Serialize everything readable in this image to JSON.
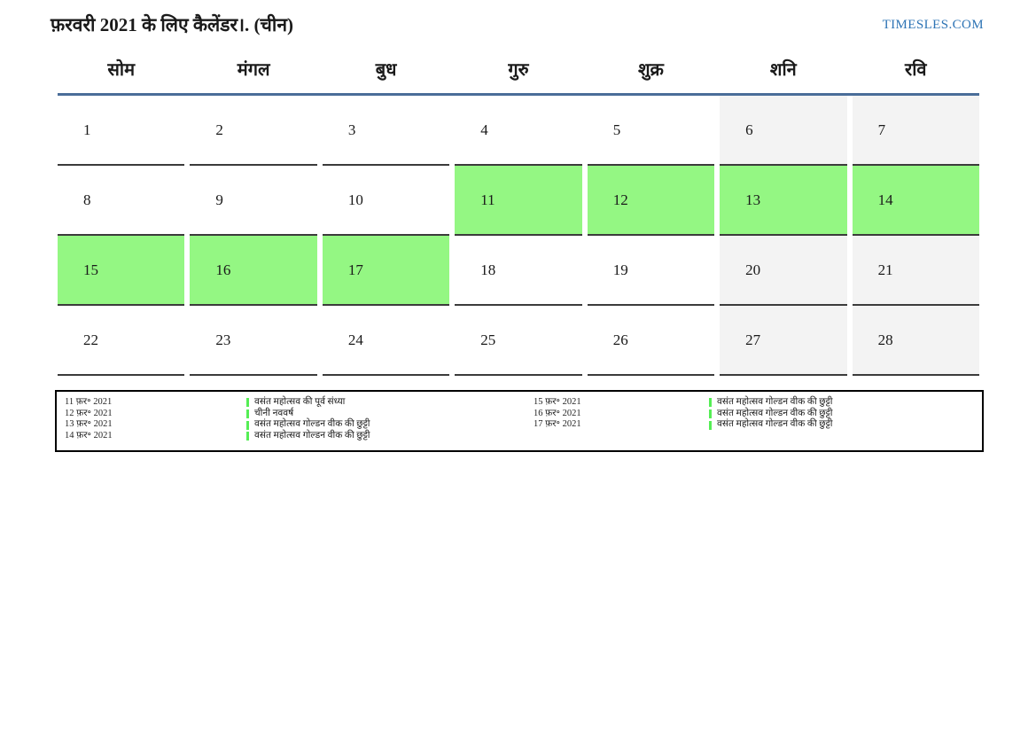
{
  "header": {
    "title": "फ़रवरी 2021 के लिए कैलेंडर।. (चीन)",
    "site": "TIMESLES.COM"
  },
  "weekdays": [
    "सोम",
    "मंगल",
    "बुध",
    "गुरु",
    "शुक्र",
    "शनि",
    "रवि"
  ],
  "days": [
    {
      "num": "1",
      "type": "normal"
    },
    {
      "num": "2",
      "type": "normal"
    },
    {
      "num": "3",
      "type": "normal"
    },
    {
      "num": "4",
      "type": "normal"
    },
    {
      "num": "5",
      "type": "normal"
    },
    {
      "num": "6",
      "type": "weekend"
    },
    {
      "num": "7",
      "type": "weekend"
    },
    {
      "num": "8",
      "type": "normal"
    },
    {
      "num": "9",
      "type": "normal"
    },
    {
      "num": "10",
      "type": "normal"
    },
    {
      "num": "11",
      "type": "holiday"
    },
    {
      "num": "12",
      "type": "holiday"
    },
    {
      "num": "13",
      "type": "holiday"
    },
    {
      "num": "14",
      "type": "holiday"
    },
    {
      "num": "15",
      "type": "holiday"
    },
    {
      "num": "16",
      "type": "holiday"
    },
    {
      "num": "17",
      "type": "holiday"
    },
    {
      "num": "18",
      "type": "normal"
    },
    {
      "num": "19",
      "type": "normal"
    },
    {
      "num": "20",
      "type": "weekend"
    },
    {
      "num": "21",
      "type": "weekend"
    },
    {
      "num": "22",
      "type": "normal"
    },
    {
      "num": "23",
      "type": "normal"
    },
    {
      "num": "24",
      "type": "normal"
    },
    {
      "num": "25",
      "type": "normal"
    },
    {
      "num": "26",
      "type": "normal"
    },
    {
      "num": "27",
      "type": "weekend"
    },
    {
      "num": "28",
      "type": "weekend"
    }
  ],
  "legend": {
    "left": [
      {
        "date": "11 फ़र॰ 2021",
        "holiday": "वसंत महोत्सव की पूर्व संध्या"
      },
      {
        "date": "12 फ़र॰ 2021",
        "holiday": "चीनी नववर्ष"
      },
      {
        "date": "13 फ़र॰ 2021",
        "holiday": "वसंत महोत्सव गोल्डन वीक की छुट्टी"
      },
      {
        "date": "14 फ़र॰ 2021",
        "holiday": "वसंत महोत्सव गोल्डन वीक की छुट्टी"
      }
    ],
    "right": [
      {
        "date": "15 फ़र॰ 2021",
        "holiday": "वसंत महोत्सव गोल्डन वीक की छुट्टी"
      },
      {
        "date": "16 फ़र॰ 2021",
        "holiday": "वसंत महोत्सव गोल्डन वीक की छुट्टी"
      },
      {
        "date": "17 फ़र॰ 2021",
        "holiday": "वसंत महोत्सव गोल्डन वीक की छुट्टी"
      }
    ]
  },
  "colors": {
    "accent_line": "#4a6d99",
    "holiday_green": "#94f783",
    "weekend_gray": "#f3f3f3",
    "legend_bar_green": "#55ee55",
    "link_blue": "#2e74b5",
    "cell_border": "#3b3b3b"
  }
}
